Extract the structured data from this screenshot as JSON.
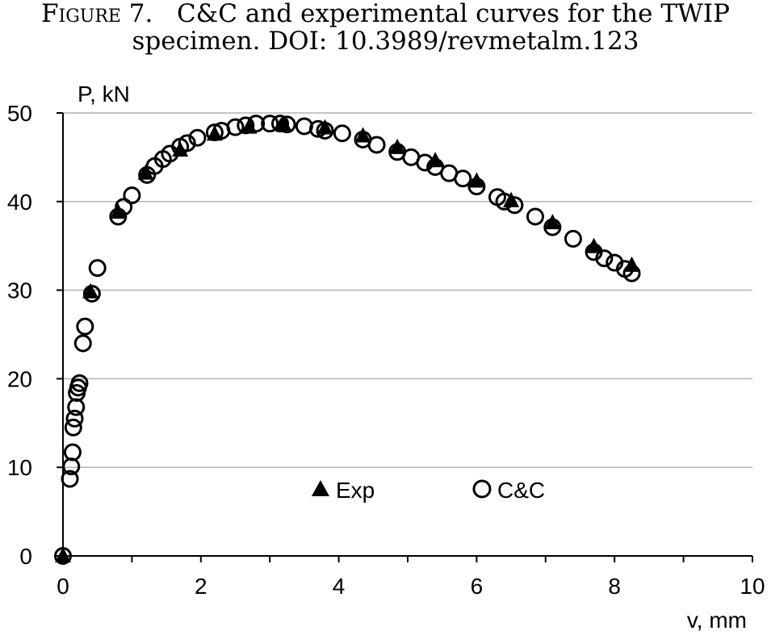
{
  "caption": {
    "figure_label": "Figure 7.",
    "line1": "C&C and experimental curves for the TWIP",
    "line2": "specimen. DOI: 10.3989/revmetalm.123"
  },
  "chart_data": {
    "type": "scatter",
    "xlabel": "v, mm",
    "ylabel": "P, kN",
    "xlim": [
      0,
      10
    ],
    "ylim": [
      0,
      50
    ],
    "x_ticks": [
      0,
      2,
      4,
      6,
      8,
      10
    ],
    "y_ticks": [
      0,
      10,
      20,
      30,
      40,
      50
    ],
    "grid": "horizontal",
    "legend_position": "bottom-center",
    "series": [
      {
        "name": "Exp",
        "marker": "filled-triangle",
        "color": "#000000",
        "points": [
          [
            0.0,
            0.0
          ],
          [
            0.4,
            29.8
          ],
          [
            0.8,
            38.8
          ],
          [
            1.2,
            43.2
          ],
          [
            1.7,
            45.8
          ],
          [
            2.2,
            47.6
          ],
          [
            2.7,
            48.4
          ],
          [
            3.2,
            48.7
          ],
          [
            3.8,
            48.3
          ],
          [
            4.35,
            47.4
          ],
          [
            4.85,
            46.1
          ],
          [
            5.4,
            44.6
          ],
          [
            6.0,
            42.3
          ],
          [
            6.5,
            40.1
          ],
          [
            7.1,
            37.6
          ],
          [
            7.7,
            34.9
          ],
          [
            8.25,
            32.8
          ]
        ]
      },
      {
        "name": "C&C",
        "marker": "open-circle",
        "color": "#000000",
        "points": [
          [
            0.0,
            0.0
          ],
          [
            0.1,
            8.7
          ],
          [
            0.12,
            10.1
          ],
          [
            0.14,
            11.7
          ],
          [
            0.15,
            14.5
          ],
          [
            0.17,
            15.5
          ],
          [
            0.19,
            16.8
          ],
          [
            0.2,
            18.4
          ],
          [
            0.22,
            19.0
          ],
          [
            0.24,
            19.5
          ],
          [
            0.29,
            24.0
          ],
          [
            0.32,
            25.9
          ],
          [
            0.42,
            29.6
          ],
          [
            0.5,
            32.5
          ],
          [
            0.8,
            38.3
          ],
          [
            0.88,
            39.4
          ],
          [
            1.0,
            40.7
          ],
          [
            1.22,
            43.0
          ],
          [
            1.33,
            44.0
          ],
          [
            1.45,
            44.8
          ],
          [
            1.55,
            45.4
          ],
          [
            1.7,
            46.2
          ],
          [
            1.8,
            46.6
          ],
          [
            1.95,
            47.2
          ],
          [
            2.2,
            47.8
          ],
          [
            2.3,
            48.0
          ],
          [
            2.5,
            48.4
          ],
          [
            2.65,
            48.6
          ],
          [
            2.8,
            48.8
          ],
          [
            3.0,
            48.8
          ],
          [
            3.15,
            48.8
          ],
          [
            3.25,
            48.7
          ],
          [
            3.5,
            48.5
          ],
          [
            3.7,
            48.2
          ],
          [
            3.8,
            48.0
          ],
          [
            4.05,
            47.7
          ],
          [
            4.35,
            47.0
          ],
          [
            4.55,
            46.4
          ],
          [
            4.85,
            45.6
          ],
          [
            5.05,
            45.0
          ],
          [
            5.25,
            44.4
          ],
          [
            5.4,
            43.9
          ],
          [
            5.6,
            43.2
          ],
          [
            5.8,
            42.6
          ],
          [
            6.0,
            41.7
          ],
          [
            6.3,
            40.5
          ],
          [
            6.4,
            40.0
          ],
          [
            6.55,
            39.6
          ],
          [
            6.85,
            38.3
          ],
          [
            7.1,
            37.1
          ],
          [
            7.4,
            35.8
          ],
          [
            7.7,
            34.3
          ],
          [
            7.85,
            33.6
          ],
          [
            8.0,
            33.1
          ],
          [
            8.15,
            32.4
          ],
          [
            8.25,
            31.9
          ]
        ]
      }
    ]
  }
}
